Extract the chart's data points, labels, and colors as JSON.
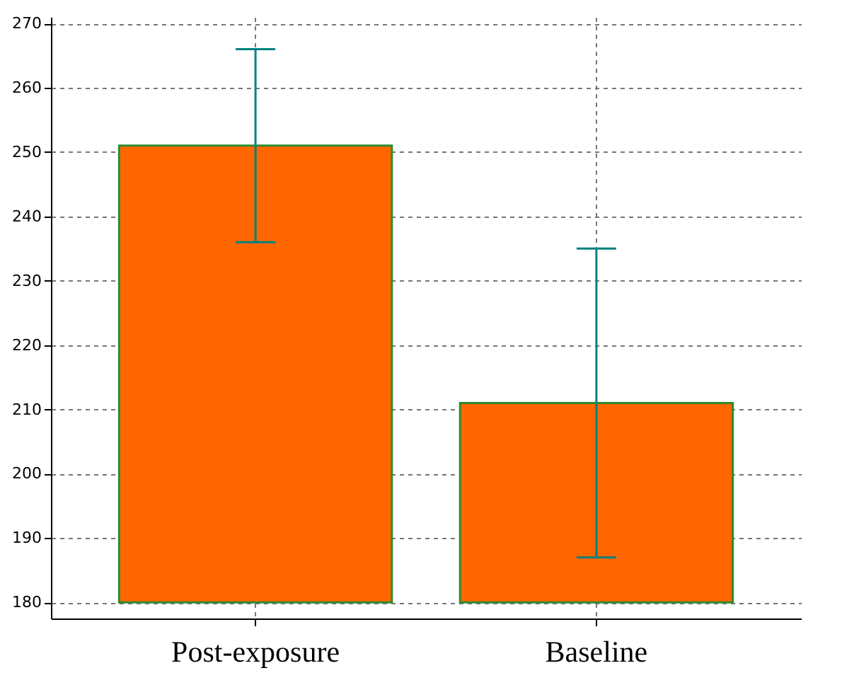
{
  "chart_data": {
    "type": "bar",
    "categories": [
      "Post-exposure",
      "Baseline"
    ],
    "base": [
      180,
      180
    ],
    "values": [
      71,
      31
    ],
    "errors": [
      [
        236,
        266
      ],
      [
        187,
        235
      ]
    ],
    "color": "#ff6600",
    "ylim": [
      177.5,
      271
    ],
    "yticks": [
      180,
      190,
      200,
      210,
      220,
      230,
      240,
      250,
      260,
      270
    ],
    "grid": true
  }
}
